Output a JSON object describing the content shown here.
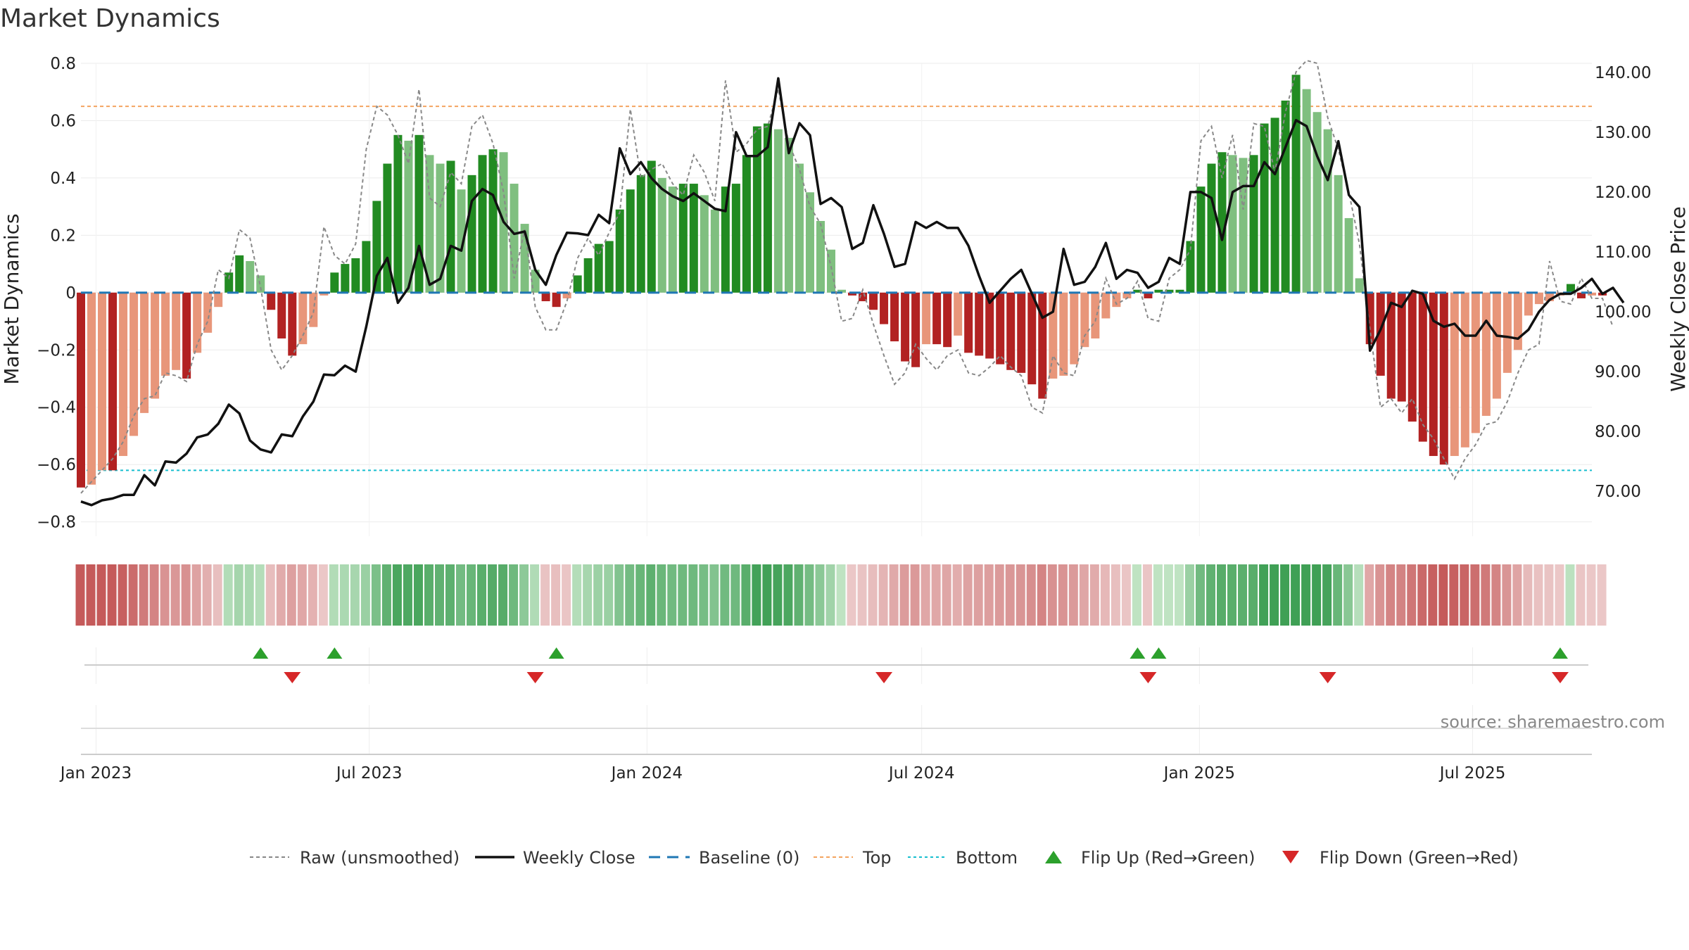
{
  "chart_data": {
    "type": "bar",
    "title": "Market Dynamics",
    "ylabel_left": "Market Dynamics",
    "ylabel_right": "Weekly Close Price",
    "y_left": {
      "min": -0.85,
      "max": 0.8,
      "ticks": [
        0.8,
        0.6,
        0.4,
        0.2,
        0,
        -0.2,
        -0.4,
        -0.6,
        -0.8
      ],
      "tick_labels": [
        "0.8",
        "0.6",
        "0.4",
        "0.2",
        "0",
        "−0.2",
        "−0.4",
        "−0.6",
        "−0.8"
      ]
    },
    "y_right": {
      "min": 62.5,
      "max": 141.5,
      "ticks": [
        140,
        130,
        120,
        110,
        100,
        90,
        80,
        70
      ],
      "tick_labels": [
        "140.00",
        "130.00",
        "120.00",
        "110.00",
        "100.00",
        "90.00",
        "80.00",
        "70.00"
      ]
    },
    "x_axis": {
      "start": "2022-12-22",
      "end": "2025-09-18",
      "ticks": [
        "2023-01-01",
        "2023-07-01",
        "2024-01-01",
        "2024-07-01",
        "2025-01-01",
        "2025-07-01"
      ],
      "tick_labels": [
        "Jan 2023",
        "Jul 2023",
        "Jan 2024",
        "Jul 2024",
        "Jan 2025",
        "Jul 2025"
      ]
    },
    "week_start": "2022-12-22",
    "top_threshold": 0.65,
    "bottom_threshold": -0.62,
    "baseline": 0,
    "grid": true,
    "colors": {
      "bar_green_dark": "#228B22",
      "bar_green_light": "#7FBF7F",
      "bar_red_dark": "#B22222",
      "bar_red_light": "#E8967A",
      "close_line": "#111111",
      "raw_line": "#888888",
      "baseline": "#1f77b4",
      "top": "#f4a460",
      "bottom": "#17becf",
      "flip_up": "#2ca02c",
      "flip_down": "#d62728"
    },
    "momentum": [
      -0.68,
      -0.67,
      -0.62,
      -0.62,
      -0.57,
      -0.5,
      -0.42,
      -0.37,
      -0.29,
      -0.27,
      -0.3,
      -0.21,
      -0.14,
      -0.05,
      0.07,
      0.13,
      0.11,
      0.06,
      -0.06,
      -0.16,
      -0.22,
      -0.18,
      -0.12,
      -0.01,
      0.07,
      0.1,
      0.12,
      0.18,
      0.32,
      0.45,
      0.55,
      0.53,
      0.55,
      0.48,
      0.45,
      0.46,
      0.36,
      0.41,
      0.48,
      0.5,
      0.49,
      0.38,
      0.24,
      0.08,
      -0.03,
      -0.05,
      -0.02,
      0.06,
      0.12,
      0.17,
      0.18,
      0.29,
      0.36,
      0.41,
      0.46,
      0.4,
      0.37,
      0.38,
      0.38,
      0.34,
      0.29,
      0.37,
      0.38,
      0.48,
      0.58,
      0.59,
      0.57,
      0.54,
      0.45,
      0.35,
      0.25,
      0.15,
      0.01,
      -0.01,
      -0.03,
      -0.06,
      -0.11,
      -0.17,
      -0.24,
      -0.26,
      -0.18,
      -0.18,
      -0.19,
      -0.15,
      -0.21,
      -0.22,
      -0.23,
      -0.25,
      -0.27,
      -0.28,
      -0.32,
      -0.37,
      -0.3,
      -0.29,
      -0.25,
      -0.19,
      -0.16,
      -0.09,
      -0.05,
      -0.02,
      0.01,
      -0.02,
      0.01,
      0.01,
      0.01,
      0.18,
      0.37,
      0.45,
      0.49,
      0.48,
      0.47,
      0.48,
      0.59,
      0.61,
      0.67,
      0.76,
      0.71,
      0.63,
      0.57,
      0.41,
      0.26,
      0.05,
      -0.18,
      -0.29,
      -0.37,
      -0.38,
      -0.45,
      -0.52,
      -0.57,
      -0.6,
      -0.57,
      -0.54,
      -0.49,
      -0.43,
      -0.37,
      -0.28,
      -0.2,
      -0.08,
      -0.04,
      -0.03,
      -0.01,
      0.03,
      -0.02,
      -0.01,
      -0.01
    ],
    "raw": [
      -0.7,
      -0.66,
      -0.62,
      -0.58,
      -0.52,
      -0.43,
      -0.37,
      -0.36,
      -0.28,
      -0.29,
      -0.31,
      -0.18,
      -0.1,
      0.08,
      0.05,
      0.22,
      0.19,
      0.02,
      -0.2,
      -0.27,
      -0.22,
      -0.15,
      -0.07,
      0.23,
      0.13,
      0.1,
      0.17,
      0.5,
      0.65,
      0.62,
      0.55,
      0.45,
      0.71,
      0.33,
      0.3,
      0.42,
      0.38,
      0.58,
      0.62,
      0.52,
      0.35,
      0.05,
      0.22,
      -0.05,
      -0.13,
      -0.13,
      -0.03,
      0.12,
      0.19,
      0.13,
      0.21,
      0.28,
      0.64,
      0.4,
      0.43,
      0.45,
      0.38,
      0.34,
      0.48,
      0.42,
      0.32,
      0.74,
      0.49,
      0.52,
      0.57,
      0.58,
      0.71,
      0.52,
      0.43,
      0.3,
      0.24,
      0.09,
      -0.1,
      -0.09,
      0.01,
      -0.11,
      -0.22,
      -0.32,
      -0.28,
      -0.18,
      -0.23,
      -0.27,
      -0.22,
      -0.2,
      -0.28,
      -0.29,
      -0.26,
      -0.22,
      -0.26,
      -0.29,
      -0.4,
      -0.42,
      -0.22,
      -0.28,
      -0.29,
      -0.15,
      -0.1,
      0.05,
      -0.04,
      -0.02,
      0.04,
      -0.09,
      -0.1,
      0.05,
      0.08,
      0.15,
      0.53,
      0.58,
      0.4,
      0.55,
      0.29,
      0.59,
      0.58,
      0.42,
      0.63,
      0.77,
      0.81,
      0.8,
      0.61,
      0.5,
      0.35,
      0.17,
      -0.13,
      -0.4,
      -0.37,
      -0.42,
      -0.37,
      -0.46,
      -0.51,
      -0.58,
      -0.65,
      -0.58,
      -0.53,
      -0.46,
      -0.45,
      -0.38,
      -0.28,
      -0.2,
      -0.18,
      0.11,
      -0.03,
      -0.04,
      0.05,
      -0.02,
      -0.02,
      -0.12
    ],
    "close": [
      68.3,
      67.7,
      68.5,
      68.8,
      69.4,
      69.4,
      72.7,
      71.0,
      75.0,
      74.8,
      76.3,
      79.0,
      79.5,
      81.3,
      84.5,
      83.0,
      78.5,
      77.0,
      76.5,
      79.5,
      79.2,
      82.5,
      85.0,
      89.5,
      89.4,
      91.0,
      90.0,
      97.5,
      106.0,
      109.0,
      101.5,
      104.0,
      111.0,
      104.5,
      105.5,
      111.0,
      110.2,
      118.5,
      120.5,
      119.5,
      115.0,
      113.0,
      113.4,
      107.0,
      104.5,
      109.5,
      113.2,
      113.1,
      112.8,
      116.2,
      114.8,
      127.3,
      123.0,
      125.0,
      122.3,
      120.5,
      119.3,
      118.5,
      119.8,
      118.5,
      117.2,
      116.8,
      130.0,
      126.0,
      126.0,
      127.5,
      139.0,
      126.5,
      131.5,
      129.5,
      118.0,
      119.0,
      117.5,
      110.5,
      111.5,
      117.8,
      113.0,
      107.5,
      108.0,
      115.0,
      114.0,
      115.0,
      114.0,
      114.0,
      111.0,
      106.0,
      101.5,
      103.5,
      105.5,
      107.0,
      103.0,
      99.0,
      100.0,
      110.5,
      104.5,
      105.0,
      107.5,
      111.5,
      105.5,
      107.0,
      106.5,
      104.0,
      105.0,
      109.0,
      108.0,
      120.0,
      120.0,
      119.0,
      112.0,
      120.0,
      121.0,
      121.0,
      125.0,
      123.0,
      127.5,
      132.0,
      131.0,
      126.0,
      122.0,
      128.5,
      119.5,
      117.5,
      93.5,
      97.0,
      101.5,
      100.8,
      103.5,
      103.0,
      98.5,
      97.5,
      98.0,
      96.0,
      96.0,
      98.5,
      96.0,
      95.8,
      95.5,
      97.0,
      100.0,
      102.0,
      103.0,
      103.0,
      104.0,
      105.5,
      103.0,
      104.0,
      101.5
    ],
    "flips_up": [
      "2023-04-20",
      "2023-06-08",
      "2023-11-02",
      "2024-11-21",
      "2024-12-05",
      "2025-08-28"
    ],
    "flips_down": [
      "2023-05-11",
      "2023-10-19",
      "2024-06-06",
      "2024-11-28",
      "2025-03-27",
      "2025-08-28"
    ],
    "legend": [
      {
        "key": "raw",
        "label": "Raw (unsmoothed)"
      },
      {
        "key": "close",
        "label": "Weekly Close"
      },
      {
        "key": "baseline",
        "label": "Baseline (0)"
      },
      {
        "key": "top",
        "label": "Top"
      },
      {
        "key": "bottom",
        "label": "Bottom"
      },
      {
        "key": "flip_up",
        "label": "Flip Up (Red→Green)"
      },
      {
        "key": "flip_down",
        "label": "Flip Down (Green→Red)"
      }
    ],
    "legend_position": "bottom",
    "source": "source: sharemaestro.com"
  }
}
